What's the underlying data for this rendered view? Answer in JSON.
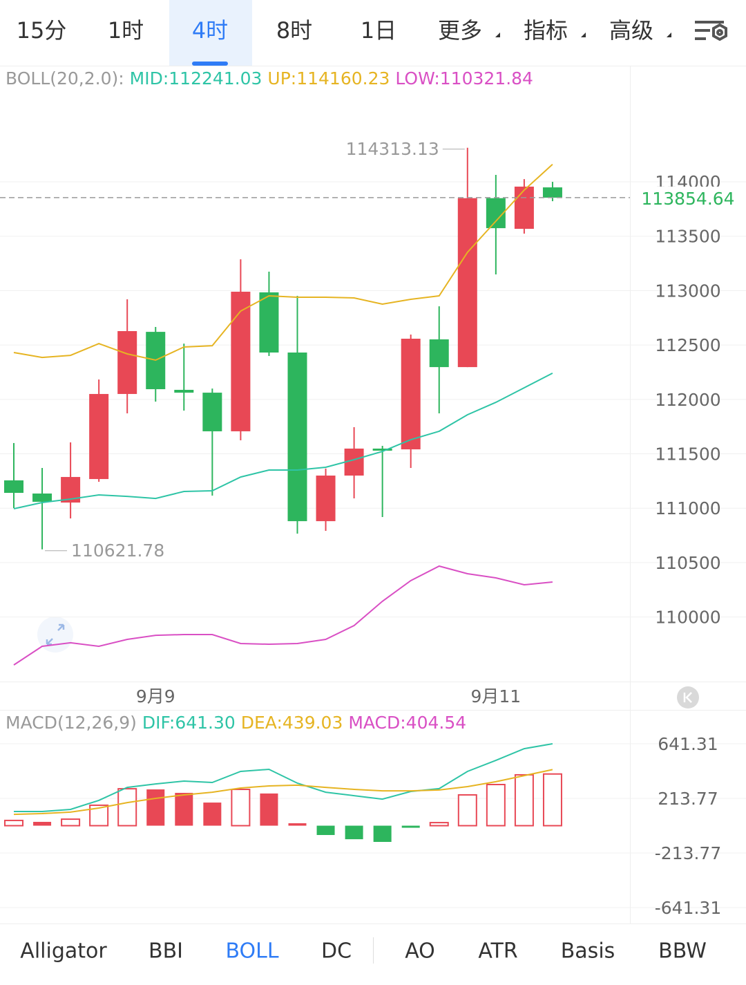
{
  "tabs": {
    "items": [
      "15分",
      "1时",
      "4时",
      "8时",
      "1日",
      "更多",
      "指标",
      "高级"
    ],
    "active": 2
  },
  "indicator_tabs": {
    "items": [
      "Alligator",
      "BBI",
      "BOLL",
      "DC",
      "AO",
      "ATR",
      "Basis",
      "BBW"
    ],
    "active": 2
  },
  "chart_data": [
    {
      "type": "candlestick",
      "legend": {
        "label": "BOLL(20,2.0):",
        "items": [
          "MID:112241.03",
          "UP:114160.23",
          "LOW:110321.84"
        ]
      },
      "categories": [
        null,
        null,
        null,
        null,
        null,
        "9月9",
        null,
        null,
        null,
        null,
        null,
        null,
        null,
        null,
        null,
        null,
        null,
        "9月11",
        null,
        null
      ],
      "open": [
        111256,
        111135,
        111052,
        111268,
        112050,
        112621,
        112088,
        112062,
        111707,
        112984,
        112431,
        110881,
        111300,
        111548,
        111541,
        112552,
        112297,
        113850,
        113568,
        113949
      ],
      "high": [
        111599,
        111370,
        111605,
        112183,
        112920,
        112666,
        112513,
        112100,
        113288,
        113174,
        112952,
        111364,
        111745,
        111573,
        112596,
        112856,
        114313.13,
        114064,
        114025,
        114000
      ],
      "low": [
        111001,
        110621.78,
        110906,
        111243,
        111872,
        111980,
        111897,
        111116,
        111624,
        112399,
        110766,
        110792,
        111090,
        110919,
        111370,
        111872,
        112297,
        113149,
        113524,
        113822
      ],
      "close": [
        111141,
        111059,
        111287,
        112050,
        112628,
        112094,
        112062,
        111707,
        112990,
        112431,
        110881,
        111300,
        111548,
        111529,
        112558,
        112297,
        113850,
        113574,
        113956,
        113854.64
      ],
      "up_color": "#e84855",
      "down_color": "#2db55d",
      "series": [
        {
          "color": "#2ec4a6",
          "values": [
            110995,
            111052,
            111084,
            111122,
            111109,
            111090,
            111154,
            111160,
            111287,
            111351,
            111351,
            111376,
            111446,
            111522,
            111630,
            111707,
            111859,
            111973,
            112107,
            112241.03
          ]
        },
        {
          "color": "#e6b422",
          "values": [
            112431,
            112386,
            112405,
            112513,
            112418,
            112361,
            112482,
            112494,
            112812,
            112952,
            112939,
            112939,
            112933,
            112876,
            112920,
            112952,
            113352,
            113638,
            113924,
            114160.23
          ]
        },
        {
          "color": "#d94fc4",
          "values": [
            109559,
            109731,
            109763,
            109731,
            109794,
            109832,
            109839,
            109839,
            109756,
            109750,
            109756,
            109794,
            109921,
            110144,
            110334,
            110468,
            110398,
            110360,
            110296,
            110321.84
          ]
        }
      ],
      "ylim": [
        109413,
        115036
      ],
      "yticks": [
        110000,
        110500,
        111000,
        111500,
        112000,
        112500,
        113000,
        113500,
        114000
      ],
      "grid": true
    },
    {
      "type": "bar",
      "legend": {
        "label": "MACD(12,26,9)",
        "items": [
          "DIF:641.30",
          "DEA:439.03",
          "MACD:404.54"
        ]
      },
      "values": [
        41,
        30,
        51,
        160,
        289,
        284,
        257,
        181,
        284,
        252,
        19,
        -73,
        -106,
        -127,
        -10,
        24,
        241,
        322,
        398,
        404.54
      ],
      "up_color": "#e84855",
      "down_color": "#2db55d",
      "series": [
        {
          "color": "#2ec4a6",
          "values": [
            111,
            111,
            127,
            198,
            300,
            327,
            349,
            338,
            425,
            441,
            333,
            262,
            235,
            208,
            268,
            290,
            425,
            511,
            603,
            641.3
          ]
        },
        {
          "color": "#e6b422",
          "values": [
            89,
            95,
            106,
            138,
            181,
            214,
            241,
            262,
            295,
            311,
            317,
            300,
            284,
            273,
            273,
            279,
            306,
            344,
            392,
            439.03
          ]
        },
        {
          "color": "#d94fc4"
        }
      ],
      "ylim": [
        -760,
        890
      ],
      "yticks": [
        -641.31,
        -213.77,
        213.77,
        641.31
      ],
      "grid": true
    }
  ]
}
